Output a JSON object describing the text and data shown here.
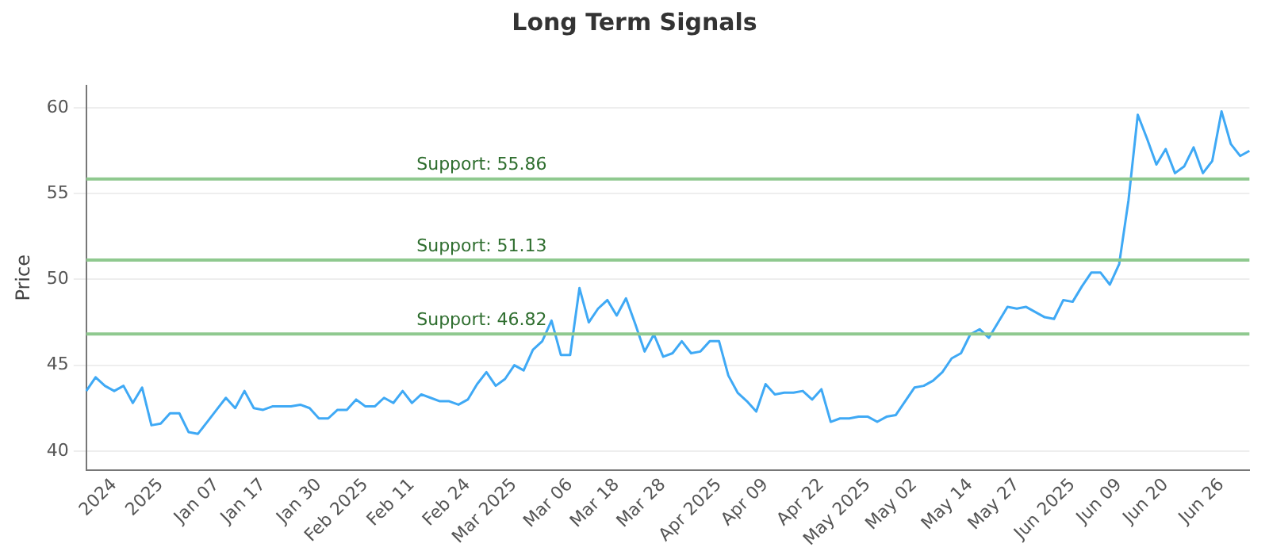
{
  "chart_data": {
    "type": "line",
    "title": "Long Term Signals",
    "ylabel": "Price",
    "categories": [
      null,
      null,
      null,
      "2024",
      null,
      null,
      null,
      null,
      "2025",
      null,
      null,
      null,
      null,
      null,
      "Jan 07",
      null,
      null,
      null,
      null,
      "Jan 17",
      null,
      null,
      null,
      null,
      null,
      "Jan 30",
      null,
      null,
      null,
      null,
      "Feb 2025",
      null,
      null,
      null,
      null,
      "Feb 11",
      null,
      null,
      null,
      null,
      null,
      "Feb 24",
      null,
      null,
      null,
      null,
      "Mar 2025",
      null,
      null,
      null,
      null,
      null,
      "Mar 06",
      null,
      null,
      null,
      null,
      "Mar 18",
      null,
      null,
      null,
      null,
      "Mar 28",
      null,
      null,
      null,
      null,
      null,
      "Apr 2025",
      null,
      null,
      null,
      null,
      "Apr 09",
      null,
      null,
      null,
      null,
      null,
      "Apr 22",
      null,
      null,
      null,
      null,
      "May 2025",
      null,
      null,
      null,
      null,
      "May 02",
      null,
      null,
      null,
      null,
      null,
      "May 14",
      null,
      null,
      null,
      null,
      "May 27",
      null,
      null,
      null,
      null,
      null,
      "Jun 2025",
      null,
      null,
      null,
      null,
      "Jun 09",
      null,
      null,
      null,
      null,
      "Jun 20",
      null,
      null,
      null,
      null,
      null,
      "Jun 26",
      null,
      null,
      null
    ],
    "series": [
      {
        "color": "#3fa9f5",
        "values": [
          43.5,
          44.3,
          43.8,
          43.5,
          43.8,
          42.8,
          43.7,
          41.5,
          41.6,
          42.2,
          42.2,
          41.1,
          41.0,
          41.7,
          42.4,
          43.1,
          42.5,
          43.5,
          42.5,
          42.4,
          42.6,
          42.6,
          42.6,
          42.7,
          42.5,
          41.9,
          41.9,
          42.4,
          42.4,
          43.0,
          42.6,
          42.6,
          43.1,
          42.8,
          43.5,
          42.8,
          43.3,
          43.1,
          42.9,
          42.9,
          42.7,
          43.0,
          43.9,
          44.6,
          43.8,
          44.2,
          45.0,
          44.7,
          45.9,
          46.4,
          47.6,
          45.6,
          45.6,
          49.5,
          47.5,
          48.3,
          48.8,
          47.9,
          48.9,
          47.4,
          45.8,
          46.8,
          45.5,
          45.7,
          46.4,
          45.7,
          45.8,
          46.4,
          46.4,
          44.4,
          43.4,
          42.9,
          42.3,
          43.9,
          43.3,
          43.4,
          43.4,
          43.5,
          43.0,
          43.6,
          41.7,
          41.9,
          41.9,
          42.0,
          42.0,
          41.7,
          42.0,
          42.1,
          42.9,
          43.7,
          43.8,
          44.1,
          44.6,
          45.4,
          45.7,
          46.8,
          47.1,
          46.6,
          47.5,
          48.4,
          48.3,
          48.4,
          48.1,
          47.8,
          47.7,
          48.8,
          48.7,
          49.6,
          50.4,
          50.4,
          49.7,
          50.9,
          54.6,
          59.6,
          58.2,
          56.7,
          57.6,
          56.2,
          56.6,
          57.7,
          56.2,
          56.9,
          59.8,
          57.9,
          57.2,
          57.5
        ]
      }
    ],
    "ylim": [
      38.9,
      61.3
    ],
    "yticks": [
      40,
      45,
      50,
      55,
      60
    ],
    "grid": "y",
    "legend": false,
    "marker": "none",
    "line_style": "solid",
    "ref_lines": [
      {
        "axis": "y",
        "value": 55.86,
        "label": "Support: 55.86",
        "color": "#8fc98f"
      },
      {
        "axis": "y",
        "value": 51.13,
        "label": "Support: 51.13",
        "color": "#8fc98f"
      },
      {
        "axis": "y",
        "value": 46.82,
        "label": "Support: 46.82",
        "color": "#8fc98f"
      }
    ]
  }
}
